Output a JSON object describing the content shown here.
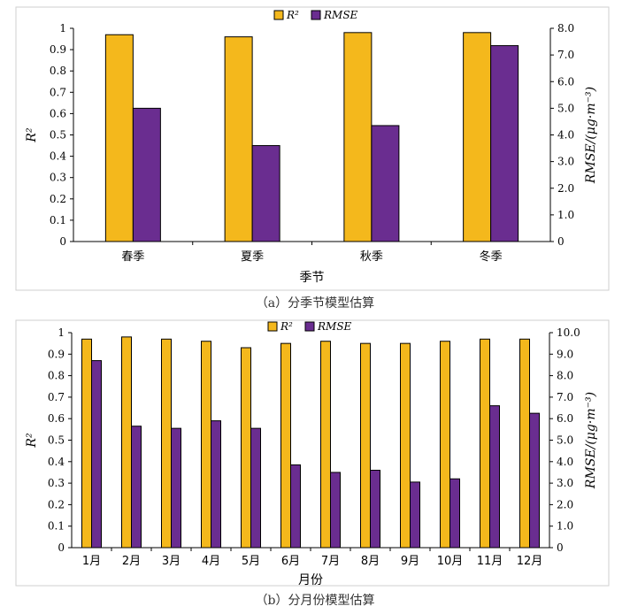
{
  "colors": {
    "r2": "#f4b81c",
    "rmse": "#6a2d90",
    "frame": "#cfcfcf"
  },
  "chart_data": [
    {
      "type": "bar",
      "caption": "（a）分季节模型估算",
      "xlabel": "季节",
      "ylabel_left": "R²",
      "ylabel_right": "RMSE/(μg·m⁻³)",
      "legend_position": "top",
      "categories": [
        "春季",
        "夏季",
        "秋季",
        "冬季"
      ],
      "series": [
        {
          "name": "R²",
          "axis": "left",
          "values": [
            0.97,
            0.96,
            0.98,
            0.98
          ]
        },
        {
          "name": "RMSE",
          "axis": "right",
          "values": [
            5.0,
            3.6,
            4.35,
            7.35
          ]
        }
      ],
      "ylim_left": [
        0,
        1
      ],
      "ylim_right": [
        0,
        8
      ],
      "yticks_left": [
        "0",
        "0.1",
        "0.2",
        "0.3",
        "0.4",
        "0.5",
        "0.6",
        "0.7",
        "0.8",
        "0.9",
        "1"
      ],
      "yticks_right": [
        "0",
        "1.0",
        "2.0",
        "3.0",
        "4.0",
        "5.0",
        "6.0",
        "7.0",
        "8.0"
      ]
    },
    {
      "type": "bar",
      "caption": "（b）分月份模型估算",
      "xlabel": "月份",
      "ylabel_left": "R²",
      "ylabel_right": "RMSE/(μg·m⁻³)",
      "legend_position": "top",
      "categories": [
        "1月",
        "2月",
        "3月",
        "4月",
        "5月",
        "6月",
        "7月",
        "8月",
        "9月",
        "10月",
        "11月",
        "12月"
      ],
      "series": [
        {
          "name": "R²",
          "axis": "left",
          "values": [
            0.97,
            0.98,
            0.97,
            0.96,
            0.93,
            0.95,
            0.96,
            0.95,
            0.95,
            0.96,
            0.97,
            0.97
          ]
        },
        {
          "name": "RMSE",
          "axis": "right",
          "values": [
            8.7,
            5.65,
            5.55,
            5.9,
            5.55,
            3.85,
            3.5,
            3.6,
            3.05,
            3.2,
            6.6,
            6.25
          ]
        }
      ],
      "ylim_left": [
        0,
        1
      ],
      "ylim_right": [
        0,
        10
      ],
      "yticks_left": [
        "0",
        "0.1",
        "0.2",
        "0.3",
        "0.4",
        "0.5",
        "0.6",
        "0.7",
        "0.8",
        "0.9",
        "1"
      ],
      "yticks_right": [
        "0",
        "1.0",
        "2.0",
        "3.0",
        "4.0",
        "5.0",
        "6.0",
        "7.0",
        "8.0",
        "9.0",
        "10.0"
      ]
    }
  ]
}
